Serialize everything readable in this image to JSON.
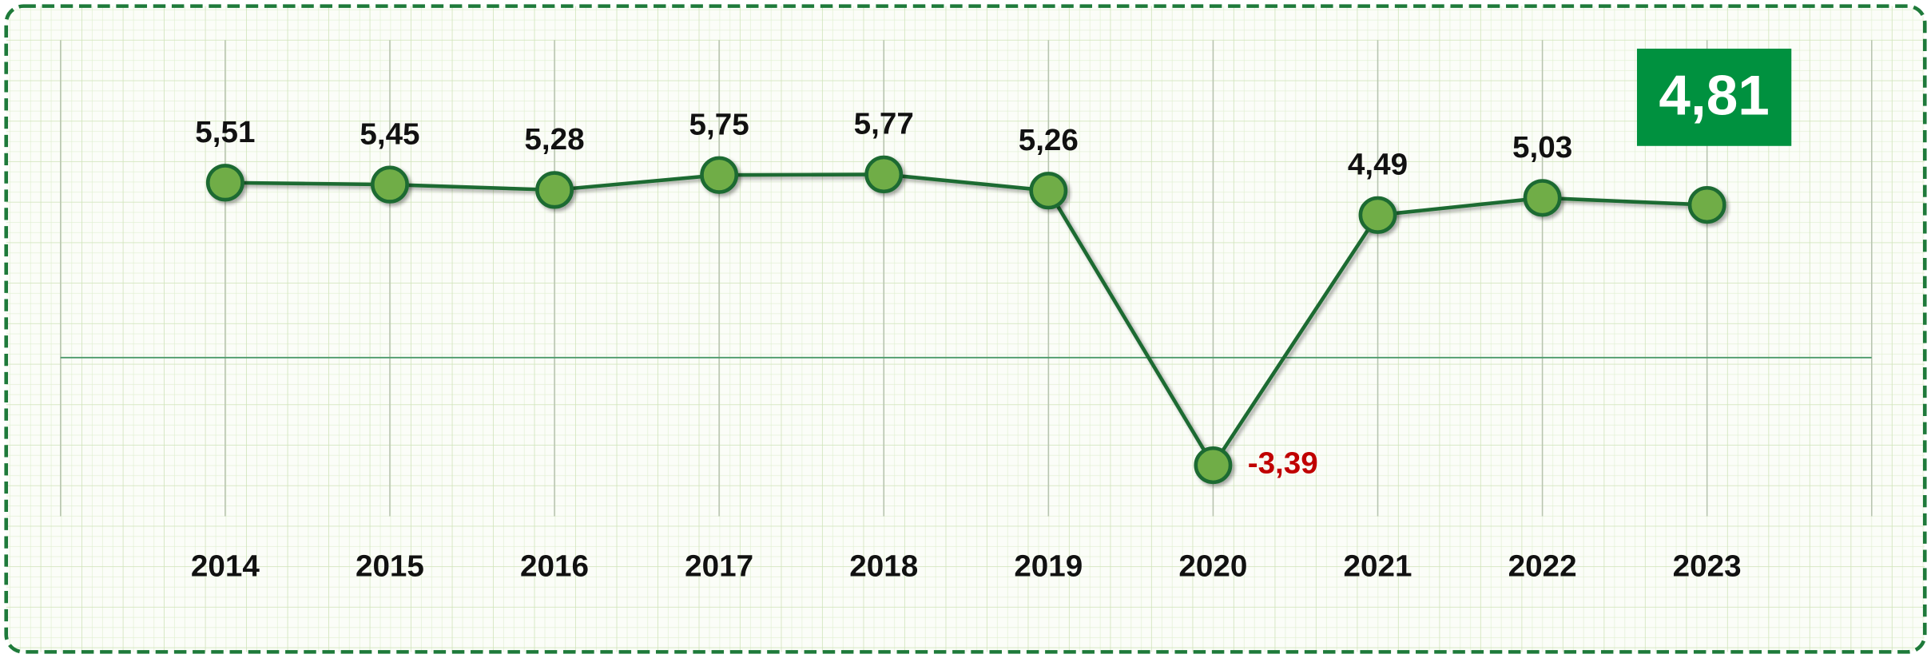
{
  "chart_data": {
    "type": "line",
    "categories": [
      "2014",
      "2015",
      "2016",
      "2017",
      "2018",
      "2019",
      "2020",
      "2021",
      "2022",
      "2023"
    ],
    "series": [
      {
        "color": "#1e6b30",
        "marker_color": "#70ad47",
        "values": [
          5.51,
          5.45,
          5.28,
          5.75,
          5.77,
          5.26,
          -3.39,
          4.49,
          5.03,
          4.81
        ],
        "value_labels": [
          "5,51",
          "5,45",
          "5,28",
          "5,75",
          "5,77",
          "5,26",
          "-3,39",
          "4,49",
          "5,03",
          "4,81"
        ]
      }
    ],
    "ylim": [
      -5,
      10
    ],
    "label_color": "#111111",
    "negative_label_color": "#c00000",
    "highlight_color": "#00913f"
  }
}
